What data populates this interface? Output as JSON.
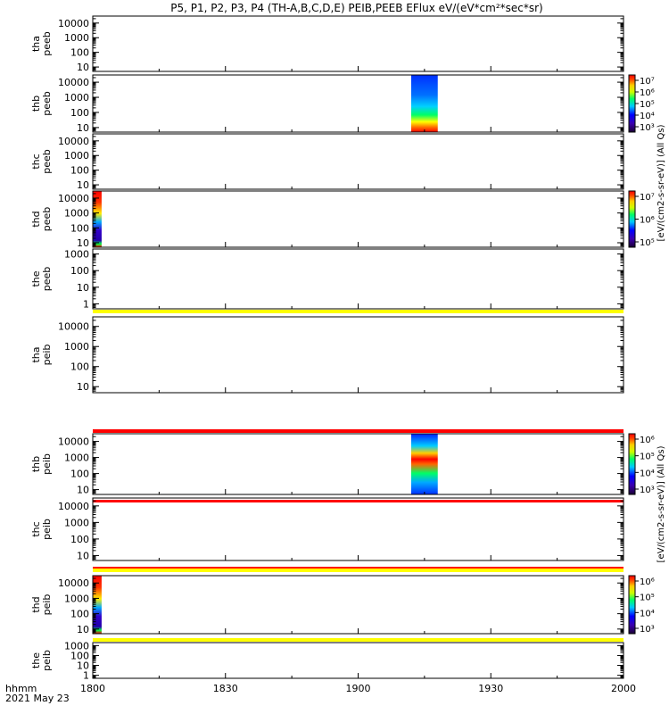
{
  "title": "P5, P1, P2, P3, P4 (TH-A,B,C,D,E) PEIB,PEEB EFlux eV/(eV*cm²*sec*sr)",
  "chart_data": {
    "type": "heatmap",
    "title": "P5, P1, P2, P3, P4 (TH-A,B,C,D,E) PEIB,PEEB EFlux eV/(eV*cm²*sec*sr)",
    "x_axis": {
      "range": [
        "18:00",
        "20:00"
      ],
      "tick_labels": [
        "1800",
        "1830",
        "1900",
        "1930",
        "2000"
      ],
      "label_line1": "hhmm",
      "label_line2": "2021 May 23"
    },
    "panels": [
      {
        "id": "tha_peeb",
        "label1": "tha",
        "label2": "peeb",
        "yscale": "log",
        "ylim": [
          5,
          30000
        ],
        "yticks": [
          "10",
          "100",
          "1000",
          "10000"
        ],
        "data": "none"
      },
      {
        "id": "thb_peeb",
        "label1": "thb",
        "label2": "peeb",
        "yscale": "log",
        "ylim": [
          5,
          30000
        ],
        "yticks": [
          "10",
          "100",
          "1000",
          "10000"
        ],
        "data": "spectrogram",
        "time_range": [
          "19:12",
          "19:18"
        ],
        "flux_peak_low_energy": true
      },
      {
        "id": "thc_peeb",
        "label1": "thc",
        "label2": "peeb",
        "yscale": "log",
        "ylim": [
          5,
          30000
        ],
        "yticks": [
          "10",
          "100",
          "1000",
          "10000"
        ],
        "data": "none"
      },
      {
        "id": "thd_peeb",
        "label1": "thd",
        "label2": "peeb",
        "yscale": "log",
        "ylim": [
          5,
          30000
        ],
        "yticks": [
          "10",
          "100",
          "1000",
          "10000"
        ],
        "data": "spectrogram",
        "time_range": [
          "18:00",
          "18:02"
        ]
      },
      {
        "id": "the_peeb",
        "label1": "the",
        "label2": "peeb",
        "yscale": "log",
        "ylim": [
          0.5,
          2000
        ],
        "yticks": [
          "1",
          "10",
          "100",
          "1000"
        ],
        "data": "none",
        "bar_below": "yellow"
      },
      {
        "id": "tha_peib",
        "label1": "tha",
        "label2": "peib",
        "yscale": "log",
        "ylim": [
          5,
          30000
        ],
        "yticks": [
          "10",
          "100",
          "1000",
          "10000"
        ],
        "data": "none",
        "bar_below": "red"
      },
      {
        "id": "thb_peib",
        "label1": "thb",
        "label2": "peib",
        "yscale": "log",
        "ylim": [
          5,
          30000
        ],
        "yticks": [
          "10",
          "100",
          "1000",
          "10000"
        ],
        "data": "spectrogram",
        "time_range": [
          "19:12",
          "19:18"
        ],
        "flux_peak_mid_energy": true,
        "bar_below": "red"
      },
      {
        "id": "thc_peib",
        "label1": "thc",
        "label2": "peib",
        "yscale": "log",
        "ylim": [
          5,
          30000
        ],
        "yticks": [
          "10",
          "100",
          "1000",
          "10000"
        ],
        "data": "none",
        "bar_below": "yellow"
      },
      {
        "id": "thd_peib",
        "label1": "thd",
        "label2": "peib",
        "yscale": "log",
        "ylim": [
          5,
          30000
        ],
        "yticks": [
          "10",
          "100",
          "1000",
          "10000"
        ],
        "data": "spectrogram",
        "time_range": [
          "18:00",
          "18:02"
        ],
        "bar_below": "yellow"
      },
      {
        "id": "the_peib",
        "label1": "the",
        "label2": "peib",
        "yscale": "log",
        "ylim": [
          0.5,
          2000
        ],
        "yticks": [
          "1",
          "10",
          "100",
          "1000"
        ],
        "data": "none"
      }
    ],
    "colorbars": [
      {
        "id": "cb_thb_peeb",
        "ticks": [
          "10³",
          "10⁴",
          "10⁵",
          "10⁶",
          "10⁷"
        ]
      },
      {
        "id": "cb_thd_peeb",
        "ticks": [
          "10⁵",
          "10⁶",
          "10⁷"
        ]
      },
      {
        "id": "cb_thb_peib",
        "ticks": [
          "10³",
          "10⁴",
          "10⁵",
          "10⁶"
        ]
      },
      {
        "id": "cb_thd_peib",
        "ticks": [
          "10³",
          "10⁴",
          "10⁵",
          "10⁶"
        ]
      }
    ],
    "unit_labels": [
      "[eV/(cm2-s-sr-eV)] (All Qs)",
      "[eV/(cm2-s-sr-eV)] (All Qs)"
    ]
  }
}
